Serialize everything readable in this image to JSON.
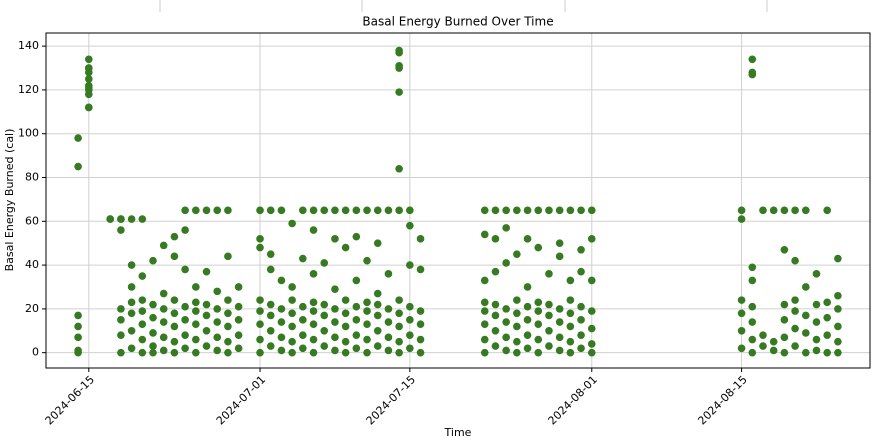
{
  "chart_data": {
    "type": "scatter",
    "title": "Basal Energy Burned Over Time",
    "x_label": "Time",
    "y_label": "Basal Energy Burned (cal)",
    "color": "#367a22",
    "grid": true,
    "xlim": [
      "2024-06-11",
      "2024-08-27"
    ],
    "xticks": [
      "2024-06-15",
      "2024-07-01",
      "2024-07-15",
      "2024-08-01",
      "2024-08-15"
    ],
    "ylim": [
      -7,
      146
    ],
    "yticks": [
      0,
      20,
      40,
      60,
      80,
      100,
      120,
      140
    ],
    "x": [
      "2024-06-14",
      "2024-06-14",
      "2024-06-14",
      "2024-06-14",
      "2024-06-14",
      "2024-06-14",
      "2024-06-14",
      "2024-06-15",
      "2024-06-15",
      "2024-06-15",
      "2024-06-15",
      "2024-06-15",
      "2024-06-15",
      "2024-06-15",
      "2024-06-15",
      "2024-06-15",
      "2024-06-15",
      "2024-06-15",
      "2024-06-17",
      "2024-06-17",
      "2024-06-18",
      "2024-06-18",
      "2024-06-18",
      "2024-06-18",
      "2024-06-18",
      "2024-06-18",
      "2024-06-18",
      "2024-06-19",
      "2024-06-19",
      "2024-06-19",
      "2024-06-19",
      "2024-06-19",
      "2024-06-19",
      "2024-06-19",
      "2024-06-20",
      "2024-06-20",
      "2024-06-20",
      "2024-06-20",
      "2024-06-20",
      "2024-06-20",
      "2024-06-20",
      "2024-06-21",
      "2024-06-21",
      "2024-06-21",
      "2024-06-21",
      "2024-06-21",
      "2024-06-21",
      "2024-06-22",
      "2024-06-22",
      "2024-06-22",
      "2024-06-22",
      "2024-06-22",
      "2024-06-22",
      "2024-06-23",
      "2024-06-23",
      "2024-06-23",
      "2024-06-23",
      "2024-06-23",
      "2024-06-23",
      "2024-06-23",
      "2024-06-24",
      "2024-06-24",
      "2024-06-24",
      "2024-06-24",
      "2024-06-24",
      "2024-06-24",
      "2024-06-24",
      "2024-06-25",
      "2024-06-25",
      "2024-06-25",
      "2024-06-25",
      "2024-06-25",
      "2024-06-25",
      "2024-06-25",
      "2024-06-26",
      "2024-06-26",
      "2024-06-26",
      "2024-06-26",
      "2024-06-26",
      "2024-06-26",
      "2024-06-27",
      "2024-06-27",
      "2024-06-27",
      "2024-06-27",
      "2024-06-27",
      "2024-06-27",
      "2024-06-28",
      "2024-06-28",
      "2024-06-28",
      "2024-06-28",
      "2024-06-28",
      "2024-06-28",
      "2024-06-28",
      "2024-06-29",
      "2024-06-29",
      "2024-06-29",
      "2024-06-29",
      "2024-06-29",
      "2024-07-01",
      "2024-07-01",
      "2024-07-01",
      "2024-07-01",
      "2024-07-01",
      "2024-07-01",
      "2024-07-01",
      "2024-07-01",
      "2024-07-02",
      "2024-07-02",
      "2024-07-02",
      "2024-07-02",
      "2024-07-02",
      "2024-07-02",
      "2024-07-02",
      "2024-07-03",
      "2024-07-03",
      "2024-07-03",
      "2024-07-03",
      "2024-07-03",
      "2024-07-03",
      "2024-07-04",
      "2024-07-04",
      "2024-07-04",
      "2024-07-04",
      "2024-07-04",
      "2024-07-04",
      "2024-07-04",
      "2024-07-05",
      "2024-07-05",
      "2024-07-05",
      "2024-07-05",
      "2024-07-05",
      "2024-07-05",
      "2024-07-06",
      "2024-07-06",
      "2024-07-06",
      "2024-07-06",
      "2024-07-06",
      "2024-07-06",
      "2024-07-06",
      "2024-07-06",
      "2024-07-07",
      "2024-07-07",
      "2024-07-07",
      "2024-07-07",
      "2024-07-07",
      "2024-07-07",
      "2024-07-08",
      "2024-07-08",
      "2024-07-08",
      "2024-07-08",
      "2024-07-08",
      "2024-07-08",
      "2024-07-08",
      "2024-07-09",
      "2024-07-09",
      "2024-07-09",
      "2024-07-09",
      "2024-07-09",
      "2024-07-09",
      "2024-07-09",
      "2024-07-10",
      "2024-07-10",
      "2024-07-10",
      "2024-07-10",
      "2024-07-10",
      "2024-07-10",
      "2024-07-10",
      "2024-07-11",
      "2024-07-11",
      "2024-07-11",
      "2024-07-11",
      "2024-07-11",
      "2024-07-11",
      "2024-07-11",
      "2024-07-12",
      "2024-07-12",
      "2024-07-12",
      "2024-07-12",
      "2024-07-12",
      "2024-07-12",
      "2024-07-12",
      "2024-07-13",
      "2024-07-13",
      "2024-07-13",
      "2024-07-13",
      "2024-07-13",
      "2024-07-13",
      "2024-07-14",
      "2024-07-14",
      "2024-07-14",
      "2024-07-14",
      "2024-07-14",
      "2024-07-14",
      "2024-07-14",
      "2024-07-14",
      "2024-07-14",
      "2024-07-14",
      "2024-07-14",
      "2024-07-14",
      "2024-07-15",
      "2024-07-15",
      "2024-07-15",
      "2024-07-15",
      "2024-07-15",
      "2024-07-15",
      "2024-07-15",
      "2024-07-16",
      "2024-07-16",
      "2024-07-16",
      "2024-07-16",
      "2024-07-16",
      "2024-07-16",
      "2024-07-22",
      "2024-07-22",
      "2024-07-22",
      "2024-07-22",
      "2024-07-22",
      "2024-07-22",
      "2024-07-22",
      "2024-07-22",
      "2024-07-23",
      "2024-07-23",
      "2024-07-23",
      "2024-07-23",
      "2024-07-23",
      "2024-07-23",
      "2024-07-23",
      "2024-07-24",
      "2024-07-24",
      "2024-07-24",
      "2024-07-24",
      "2024-07-24",
      "2024-07-24",
      "2024-07-24",
      "2024-07-25",
      "2024-07-25",
      "2024-07-25",
      "2024-07-25",
      "2024-07-25",
      "2024-07-25",
      "2024-07-25",
      "2024-07-26",
      "2024-07-26",
      "2024-07-26",
      "2024-07-26",
      "2024-07-26",
      "2024-07-26",
      "2024-07-26",
      "2024-07-27",
      "2024-07-27",
      "2024-07-27",
      "2024-07-27",
      "2024-07-27",
      "2024-07-27",
      "2024-07-27",
      "2024-07-28",
      "2024-07-28",
      "2024-07-28",
      "2024-07-28",
      "2024-07-28",
      "2024-07-28",
      "2024-07-29",
      "2024-07-29",
      "2024-07-29",
      "2024-07-29",
      "2024-07-29",
      "2024-07-29",
      "2024-07-29",
      "2024-07-30",
      "2024-07-30",
      "2024-07-30",
      "2024-07-30",
      "2024-07-30",
      "2024-07-30",
      "2024-07-30",
      "2024-07-31",
      "2024-07-31",
      "2024-07-31",
      "2024-07-31",
      "2024-07-31",
      "2024-07-31",
      "2024-07-31",
      "2024-08-01",
      "2024-08-01",
      "2024-08-01",
      "2024-08-01",
      "2024-08-01",
      "2024-08-01",
      "2024-08-01",
      "2024-08-15",
      "2024-08-15",
      "2024-08-15",
      "2024-08-15",
      "2024-08-15",
      "2024-08-15",
      "2024-08-16",
      "2024-08-16",
      "2024-08-16",
      "2024-08-16",
      "2024-08-16",
      "2024-08-16",
      "2024-08-16",
      "2024-08-16",
      "2024-08-16",
      "2024-08-17",
      "2024-08-17",
      "2024-08-17",
      "2024-08-18",
      "2024-08-18",
      "2024-08-18",
      "2024-08-19",
      "2024-08-19",
      "2024-08-19",
      "2024-08-19",
      "2024-08-19",
      "2024-08-19",
      "2024-08-20",
      "2024-08-20",
      "2024-08-20",
      "2024-08-20",
      "2024-08-20",
      "2024-08-20",
      "2024-08-21",
      "2024-08-21",
      "2024-08-21",
      "2024-08-21",
      "2024-08-21",
      "2024-08-22",
      "2024-08-22",
      "2024-08-22",
      "2024-08-22",
      "2024-08-22",
      "2024-08-23",
      "2024-08-23",
      "2024-08-23",
      "2024-08-23",
      "2024-08-23",
      "2024-08-24",
      "2024-08-24",
      "2024-08-24",
      "2024-08-24",
      "2024-08-24",
      "2024-08-24"
    ],
    "values": [
      17,
      12,
      7,
      1,
      0,
      85,
      98,
      112,
      112,
      118,
      120,
      122,
      125,
      128,
      130,
      130,
      134,
      121,
      61,
      61,
      61,
      61,
      56,
      0,
      8,
      15,
      20,
      40,
      2,
      10,
      18,
      23,
      30,
      61,
      0,
      6,
      13,
      19,
      24,
      35,
      61,
      3,
      9,
      16,
      22,
      42,
      0,
      1,
      7,
      14,
      20,
      49,
      27,
      0,
      5,
      12,
      18,
      24,
      44,
      53,
      2,
      8,
      15,
      21,
      56,
      65,
      38,
      0,
      6,
      13,
      19,
      23,
      65,
      30,
      3,
      10,
      17,
      22,
      65,
      37,
      1,
      7,
      14,
      20,
      65,
      28,
      0,
      5,
      12,
      18,
      24,
      65,
      44,
      2,
      8,
      15,
      21,
      30,
      0,
      6,
      13,
      19,
      24,
      48,
      52,
      65,
      3,
      10,
      17,
      22,
      65,
      38,
      45,
      1,
      7,
      14,
      20,
      65,
      33,
      0,
      5,
      12,
      18,
      24,
      59,
      30,
      2,
      8,
      15,
      21,
      65,
      43,
      0,
      6,
      13,
      19,
      23,
      65,
      56,
      36,
      3,
      10,
      17,
      22,
      65,
      41,
      1,
      7,
      14,
      20,
      65,
      52,
      29,
      0,
      5,
      12,
      18,
      24,
      65,
      48,
      2,
      8,
      15,
      21,
      65,
      53,
      33,
      0,
      6,
      13,
      19,
      23,
      65,
      42,
      3,
      10,
      17,
      22,
      65,
      50,
      27,
      1,
      7,
      14,
      20,
      65,
      36,
      0,
      5,
      12,
      18,
      24,
      65,
      84,
      119,
      130,
      131,
      137,
      138,
      2,
      8,
      15,
      21,
      65,
      40,
      58,
      0,
      6,
      13,
      19,
      38,
      52,
      0,
      6,
      13,
      19,
      23,
      65,
      54,
      33,
      3,
      10,
      17,
      22,
      65,
      37,
      52,
      1,
      7,
      14,
      20,
      65,
      57,
      41,
      0,
      5,
      12,
      18,
      24,
      65,
      45,
      2,
      8,
      15,
      21,
      65,
      52,
      30,
      0,
      6,
      13,
      19,
      23,
      65,
      48,
      3,
      10,
      17,
      22,
      65,
      36,
      1,
      7,
      14,
      20,
      65,
      44,
      50,
      0,
      5,
      12,
      18,
      24,
      65,
      33,
      2,
      8,
      15,
      21,
      65,
      47,
      37,
      0,
      4,
      11,
      19,
      65,
      52,
      33,
      65,
      61,
      2,
      10,
      18,
      24,
      0,
      6,
      14,
      21,
      39,
      127,
      128,
      134,
      33,
      65,
      3,
      8,
      65,
      1,
      5,
      65,
      0,
      7,
      15,
      22,
      47,
      65,
      3,
      11,
      19,
      24,
      42,
      65,
      0,
      9,
      17,
      30,
      1,
      6,
      14,
      22,
      36,
      65,
      0,
      8,
      16,
      23,
      0,
      5,
      12,
      20,
      26,
      43
    ]
  }
}
